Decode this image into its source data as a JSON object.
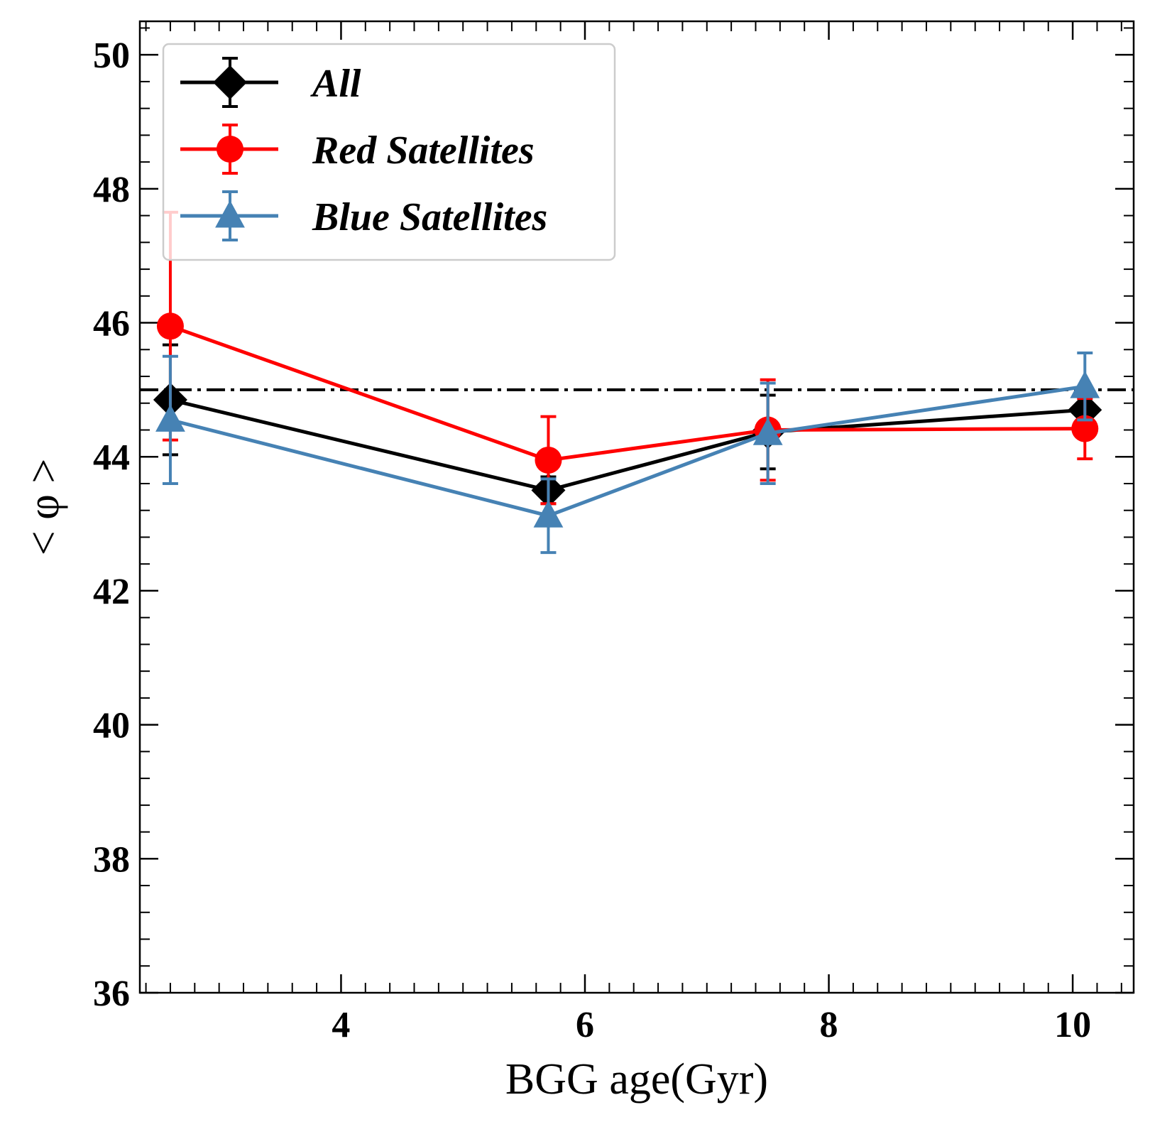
{
  "chart_data": {
    "type": "line",
    "xlabel": "BGG age(Gyr)",
    "ylabel": "< φ >",
    "xlim": [
      2.35,
      10.5
    ],
    "ylim": [
      36,
      50.5
    ],
    "xticks": [
      4,
      6,
      8,
      10
    ],
    "yticks": [
      36,
      38,
      40,
      42,
      44,
      46,
      48,
      50
    ],
    "xtick_labels": [
      "4",
      "6",
      "8",
      "10"
    ],
    "ytick_labels": [
      "36",
      "38",
      "40",
      "42",
      "44",
      "46",
      "48",
      "50"
    ],
    "x_minor_step": 0.2,
    "y_minor_step": 0.4,
    "reference_line": {
      "y": 45,
      "style": "dash-dot",
      "color": "#000000"
    },
    "grid": false,
    "legend_position": "top-left",
    "series": [
      {
        "name": "All",
        "color": "#000000",
        "marker": "diamond",
        "x": [
          2.6,
          5.7,
          7.5,
          10.1
        ],
        "y": [
          44.85,
          43.5,
          44.37,
          44.7
        ],
        "yerr": [
          0.82,
          0.2,
          0.55,
          0.1
        ]
      },
      {
        "name": "Red Satellites",
        "color": "#ff0000",
        "marker": "circle",
        "x": [
          2.6,
          5.7,
          7.5,
          10.1
        ],
        "y": [
          45.95,
          43.95,
          44.4,
          44.42
        ],
        "yerr": [
          1.7,
          0.65,
          0.75,
          0.45
        ]
      },
      {
        "name": "Blue Satellites",
        "color": "#4682b4",
        "marker": "triangle",
        "x": [
          2.6,
          5.7,
          7.5,
          10.1
        ],
        "y": [
          44.55,
          43.12,
          44.35,
          45.05
        ],
        "yerr": [
          0.95,
          0.55,
          0.75,
          0.5
        ]
      }
    ]
  }
}
